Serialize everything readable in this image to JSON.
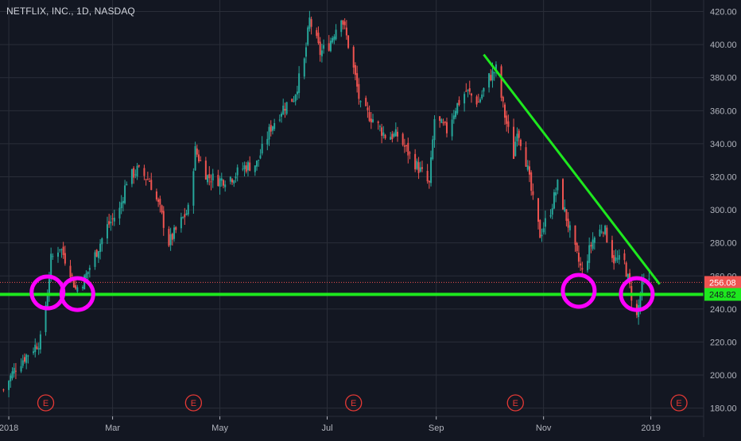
{
  "header": {
    "symbol_line": "NETFLIX, INC., 1D, NASDAQ"
  },
  "colors": {
    "background": "#131722",
    "grid": "#2a2e39",
    "axis_text": "#b2b5be",
    "up_candle": "#26a69a",
    "down_candle": "#ef5350",
    "support_line": "#1ee81e",
    "trendline": "#1ee81e",
    "circle_marker": "#ff00ff",
    "earnings_marker": "#e53935",
    "price_badge": "#ef5350",
    "support_badge": "#1ee81e"
  },
  "chart_data": {
    "type": "candlestick",
    "title": "NETFLIX, INC., 1D, NASDAQ",
    "x_tick_labels": [
      "2018",
      "Mar",
      "May",
      "Jul",
      "Sep",
      "Nov",
      "2019"
    ],
    "x_ticks": [
      "2018-01-01",
      "2018-03-01",
      "2018-05-01",
      "2018-07-01",
      "2018-09-01",
      "2018-11-01",
      "2019-01-01"
    ],
    "x_range": [
      "2017-12-27",
      "2019-01-31"
    ],
    "y_range": [
      175,
      427
    ],
    "y_ticks": [
      180,
      200,
      220,
      240,
      260,
      280,
      300,
      320,
      340,
      360,
      380,
      400,
      420
    ],
    "y_tick_labels": [
      "180.00",
      "200.00",
      "220.00",
      "240.00",
      "260.00",
      "280.00",
      "300.00",
      "320.00",
      "340.00",
      "360.00",
      "380.00",
      "400.00",
      "420.00"
    ],
    "grid": true,
    "price_path": [
      [
        "2017-12-29",
        191
      ],
      [
        "2018-01-05",
        205
      ],
      [
        "2018-01-12",
        213
      ],
      [
        "2018-01-19",
        221
      ],
      [
        "2018-01-23",
        250
      ],
      [
        "2018-01-25",
        270
      ],
      [
        "2018-01-30",
        278
      ],
      [
        "2018-02-05",
        263
      ],
      [
        "2018-02-08",
        252
      ],
      [
        "2018-02-13",
        258
      ],
      [
        "2018-02-20",
        275
      ],
      [
        "2018-02-26",
        290
      ],
      [
        "2018-03-05",
        300
      ],
      [
        "2018-03-09",
        318
      ],
      [
        "2018-03-15",
        324
      ],
      [
        "2018-03-22",
        318
      ],
      [
        "2018-03-28",
        300
      ],
      [
        "2018-04-02",
        280
      ],
      [
        "2018-04-09",
        293
      ],
      [
        "2018-04-13",
        300
      ],
      [
        "2018-04-17",
        336
      ],
      [
        "2018-04-24",
        320
      ],
      [
        "2018-05-01",
        318
      ],
      [
        "2018-05-08",
        320
      ],
      [
        "2018-05-15",
        326
      ],
      [
        "2018-05-22",
        328
      ],
      [
        "2018-05-30",
        350
      ],
      [
        "2018-06-06",
        362
      ],
      [
        "2018-06-12",
        368
      ],
      [
        "2018-06-18",
        390
      ],
      [
        "2018-06-21",
        415
      ],
      [
        "2018-06-27",
        395
      ],
      [
        "2018-07-02",
        400
      ],
      [
        "2018-07-09",
        418
      ],
      [
        "2018-07-13",
        400
      ],
      [
        "2018-07-17",
        380
      ],
      [
        "2018-07-20",
        362
      ],
      [
        "2018-07-27",
        355
      ],
      [
        "2018-08-03",
        345
      ],
      [
        "2018-08-10",
        345
      ],
      [
        "2018-08-17",
        333
      ],
      [
        "2018-08-24",
        322
      ],
      [
        "2018-08-28",
        315
      ],
      [
        "2018-08-31",
        355
      ],
      [
        "2018-09-07",
        348
      ],
      [
        "2018-09-12",
        362
      ],
      [
        "2018-09-18",
        372
      ],
      [
        "2018-09-25",
        365
      ],
      [
        "2018-10-01",
        380
      ],
      [
        "2018-10-05",
        385
      ],
      [
        "2018-10-10",
        357
      ],
      [
        "2018-10-15",
        333
      ],
      [
        "2018-10-17",
        350
      ],
      [
        "2018-10-22",
        330
      ],
      [
        "2018-10-26",
        305
      ],
      [
        "2018-10-30",
        285
      ],
      [
        "2018-11-05",
        300
      ],
      [
        "2018-11-09",
        315
      ],
      [
        "2018-11-14",
        295
      ],
      [
        "2018-11-19",
        275
      ],
      [
        "2018-11-23",
        262
      ],
      [
        "2018-11-29",
        282
      ],
      [
        "2018-12-05",
        290
      ],
      [
        "2018-12-11",
        270
      ],
      [
        "2018-12-17",
        268
      ],
      [
        "2018-12-21",
        248
      ],
      [
        "2018-12-24",
        235
      ],
      [
        "2018-12-27",
        255
      ],
      [
        "2018-12-31",
        256
      ]
    ],
    "current_price": 256.08,
    "current_price_label": "256.08",
    "support_level": 248.82,
    "support_level_label": "248.82",
    "trendline": {
      "from": [
        "2018-09-28",
        394
      ],
      "to": [
        "2019-01-06",
        255
      ]
    },
    "circled_points": [
      {
        "date": "2018-01-23",
        "price": 250
      },
      {
        "date": "2018-02-09",
        "price": 249
      },
      {
        "date": "2018-11-21",
        "price": 251
      },
      {
        "date": "2018-12-24",
        "price": 249
      }
    ],
    "earnings_markers": {
      "label": "E",
      "dates": [
        "2018-01-22",
        "2018-04-16",
        "2018-07-16",
        "2018-10-16",
        "2019-01-17"
      ]
    }
  }
}
